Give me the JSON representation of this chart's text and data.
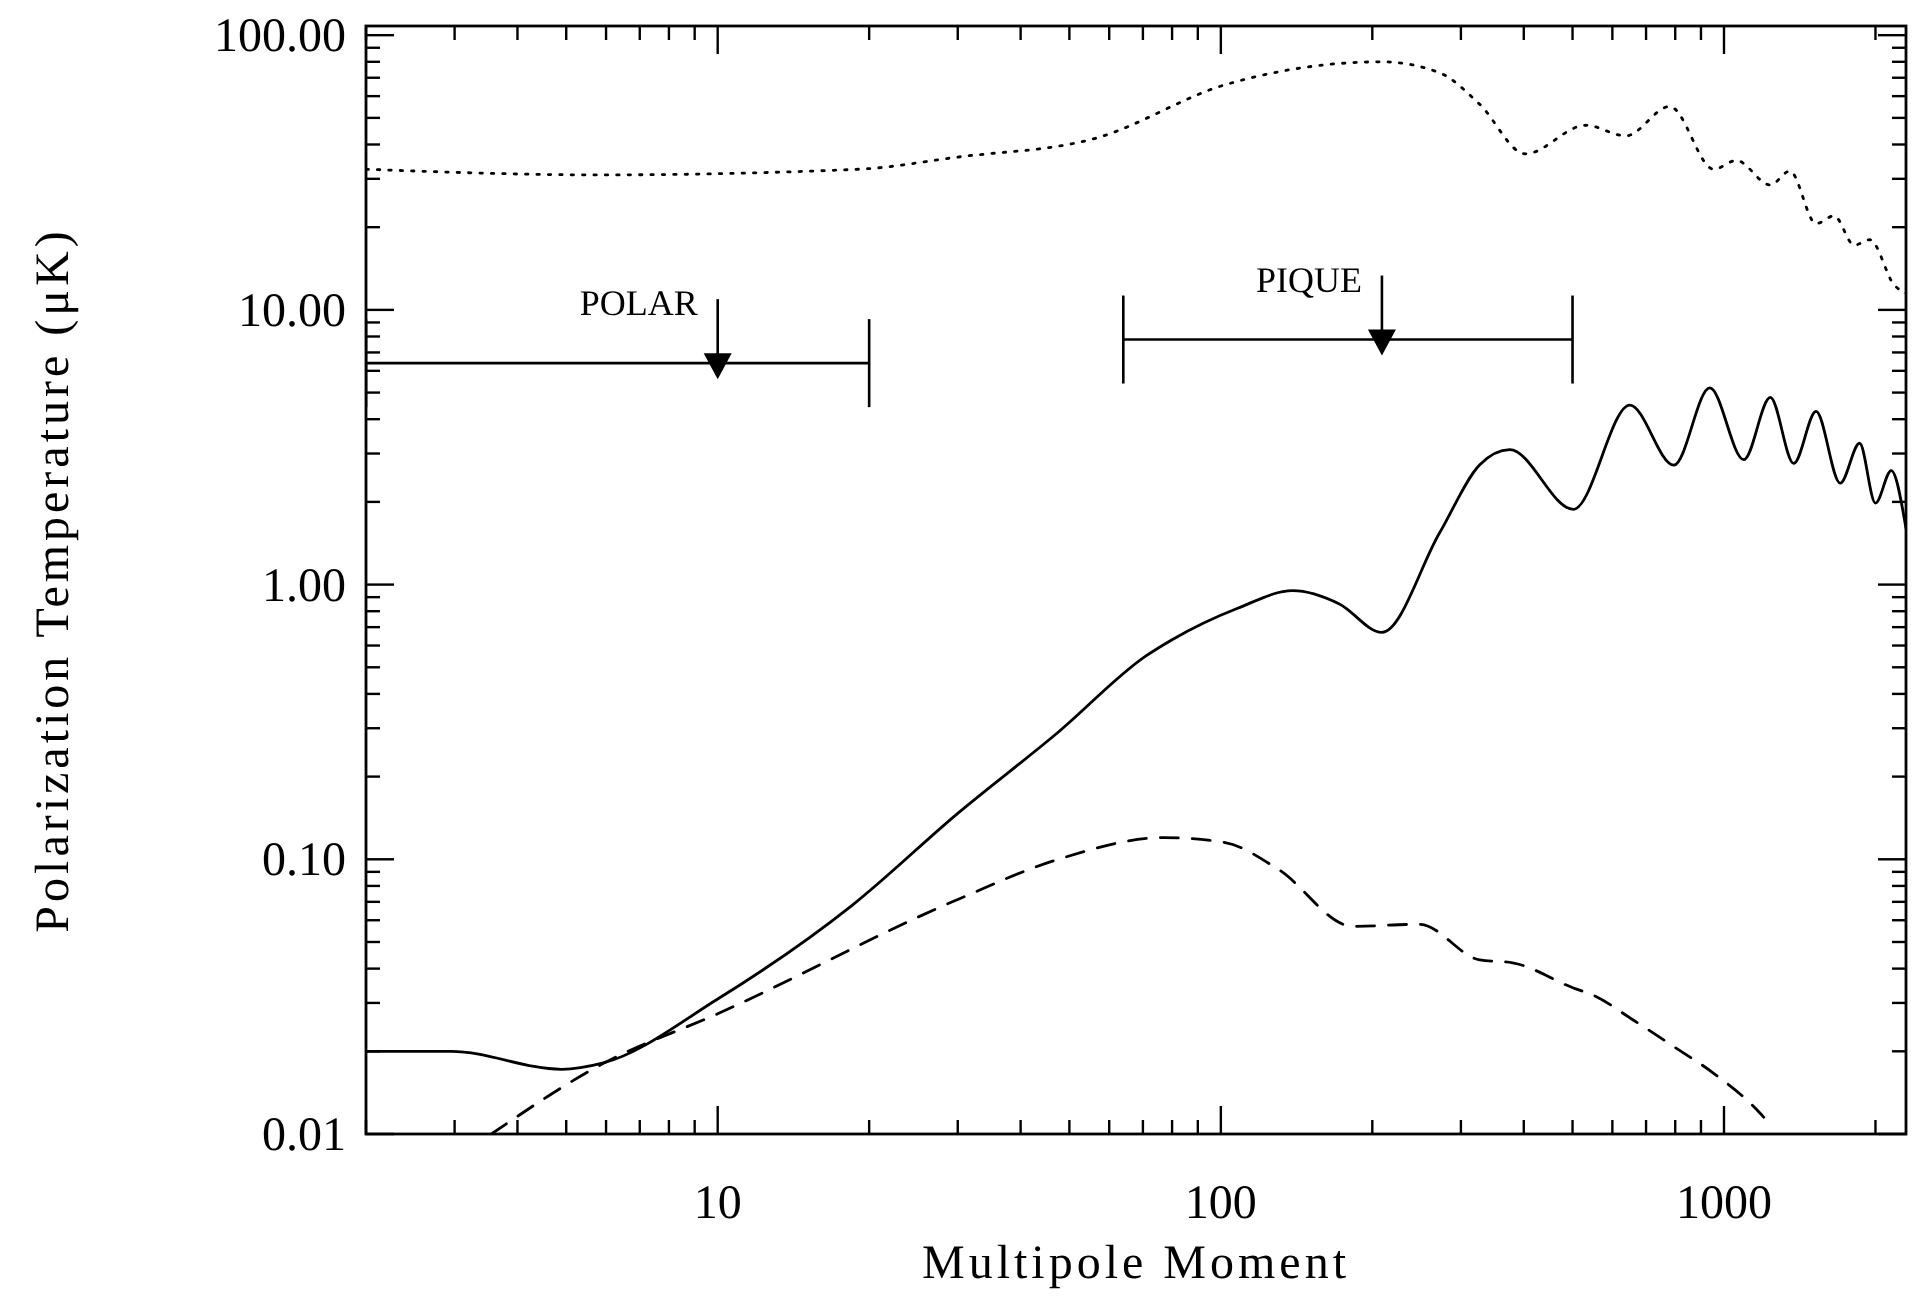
{
  "chart_data": {
    "type": "line",
    "xlabel": "Multipole Moment",
    "annotations": [
      {
        "text": "POLAR",
        "x": 10,
        "y": 6.4
      },
      {
        "text": "PIQUE",
        "x": 209,
        "y": 7.8
      }
    ],
    "ylabel": "Polarization Temperature (μK)",
    "log": "xy",
    "xlim": [
      2,
      2300
    ],
    "ylim": [
      0.01,
      108
    ],
    "xticks": [
      {
        "value": 2,
        "label": null
      },
      {
        "value": 3,
        "label": null
      },
      {
        "value": 4,
        "label": null
      },
      {
        "value": 5,
        "label": null
      },
      {
        "value": 6,
        "label": null
      },
      {
        "value": 7,
        "label": null
      },
      {
        "value": 8,
        "label": null
      },
      {
        "value": 9,
        "label": null
      },
      10,
      {
        "value": 20,
        "label": null
      },
      {
        "value": 30,
        "label": null
      },
      {
        "value": 40,
        "label": null
      },
      {
        "value": 50,
        "label": null
      },
      {
        "value": 60,
        "label": null
      },
      {
        "value": 70,
        "label": null
      },
      {
        "value": 80,
        "label": null
      },
      {
        "value": 90,
        "label": null
      },
      100,
      {
        "value": 200,
        "label": null
      },
      {
        "value": 300,
        "label": null
      },
      {
        "value": 400,
        "label": null
      },
      {
        "value": 500,
        "label": null
      },
      {
        "value": 600,
        "label": null
      },
      {
        "value": 700,
        "label": null
      },
      {
        "value": 800,
        "label": null
      },
      {
        "value": 900,
        "label": null
      },
      1000,
      {
        "value": 2000,
        "label": null
      }
    ],
    "yticks": [
      {
        "value": 0.01,
        "label": "0.01"
      },
      {
        "value": 0.02,
        "label": null
      },
      {
        "value": 0.03,
        "label": null
      },
      {
        "value": 0.04,
        "label": null
      },
      {
        "value": 0.05,
        "label": null
      },
      {
        "value": 0.06,
        "label": null
      },
      {
        "value": 0.07,
        "label": null
      },
      {
        "value": 0.08,
        "label": null
      },
      {
        "value": 0.09,
        "label": null
      },
      {
        "value": 0.1,
        "label": "0.10"
      },
      {
        "value": 0.2,
        "label": null
      },
      {
        "value": 0.3,
        "label": null
      },
      {
        "value": 0.4,
        "label": null
      },
      {
        "value": 0.5,
        "label": null
      },
      {
        "value": 0.6,
        "label": null
      },
      {
        "value": 0.7,
        "label": null
      },
      {
        "value": 0.8,
        "label": null
      },
      {
        "value": 0.9,
        "label": null
      },
      {
        "value": 1,
        "label": "1.00"
      },
      {
        "value": 2,
        "label": null
      },
      {
        "value": 3,
        "label": null
      },
      {
        "value": 4,
        "label": null
      },
      {
        "value": 5,
        "label": null
      },
      {
        "value": 6,
        "label": null
      },
      {
        "value": 7,
        "label": null
      },
      {
        "value": 8,
        "label": null
      },
      {
        "value": 9,
        "label": null
      },
      {
        "value": 10,
        "label": "10.00"
      },
      {
        "value": 20,
        "label": null
      },
      {
        "value": 30,
        "label": null
      },
      {
        "value": 40,
        "label": null
      },
      {
        "value": 50,
        "label": null
      },
      {
        "value": 60,
        "label": null
      },
      {
        "value": 70,
        "label": null
      },
      {
        "value": 80,
        "label": null
      },
      {
        "value": 90,
        "label": null
      },
      {
        "value": 100,
        "label": "100.00"
      }
    ],
    "series": [
      {
        "color": "#000000",
        "line_style": "dotted",
        "x": [
          2,
          5.8,
          19,
          30,
          56,
          102,
          161,
          209,
          272,
          327,
          403,
          531,
          638,
          780,
          955,
          1057,
          1236,
          1352,
          1524,
          1655,
          1815,
          1950,
          2180,
          2300
        ],
        "values": [
          32.5,
          31,
          32.5,
          36,
          42,
          66,
          78,
          80,
          73,
          56,
          37,
          47,
          43,
          55,
          32.5,
          35,
          28.5,
          32,
          20.6,
          22,
          17.2,
          18,
          12.3,
          11.5
        ]
      },
      {
        "color": "#000000",
        "line_style": "solid",
        "x": [
          2,
          2.95,
          4.9,
          5.9,
          10,
          18.5,
          30,
          47.5,
          71,
          80,
          108,
          139,
          172,
          209,
          272,
          327,
          375,
          502,
          650,
          795,
          937,
          1095,
          1236,
          1376,
          1524,
          1702,
          1860,
          2000,
          2150,
          2300
        ],
        "values": [
          0.02,
          0.02,
          0.0172,
          0.0181,
          0.031,
          0.068,
          0.147,
          0.29,
          0.55,
          0.63,
          0.82,
          0.95,
          0.85,
          0.67,
          1.54,
          2.73,
          3.1,
          1.88,
          4.5,
          2.72,
          5.2,
          2.85,
          4.8,
          2.76,
          4.27,
          2.34,
          3.27,
          1.98,
          2.6,
          1.6
        ]
      },
      {
        "color": "#000000",
        "line_style": "dashed",
        "x": [
          3.55,
          5.9,
          10,
          30,
          47.5,
          77,
          102,
          130,
          183,
          248,
          327,
          380,
          502,
          550,
          660,
          795,
          955,
          1160,
          1200
        ],
        "values": [
          0.01,
          0.018,
          0.0274,
          0.0714,
          0.1,
          0.12,
          0.115,
          0.092,
          0.057,
          0.058,
          0.043,
          0.042,
          0.034,
          0.032,
          0.026,
          0.0208,
          0.0166,
          0.0123,
          0.0115
        ]
      },
      {
        "type": "scatter",
        "color": "#000000",
        "marker": "triangle",
        "x": [
          10
        ],
        "values": [
          6.4
        ],
        "xerrors": [
          [
            2,
            20
          ]
        ]
      },
      {
        "type": "scatter",
        "color": "#000000",
        "marker": "triangle",
        "x": [
          209
        ],
        "values": [
          7.8
        ],
        "xerrors": [
          [
            64,
            500
          ]
        ]
      }
    ]
  }
}
